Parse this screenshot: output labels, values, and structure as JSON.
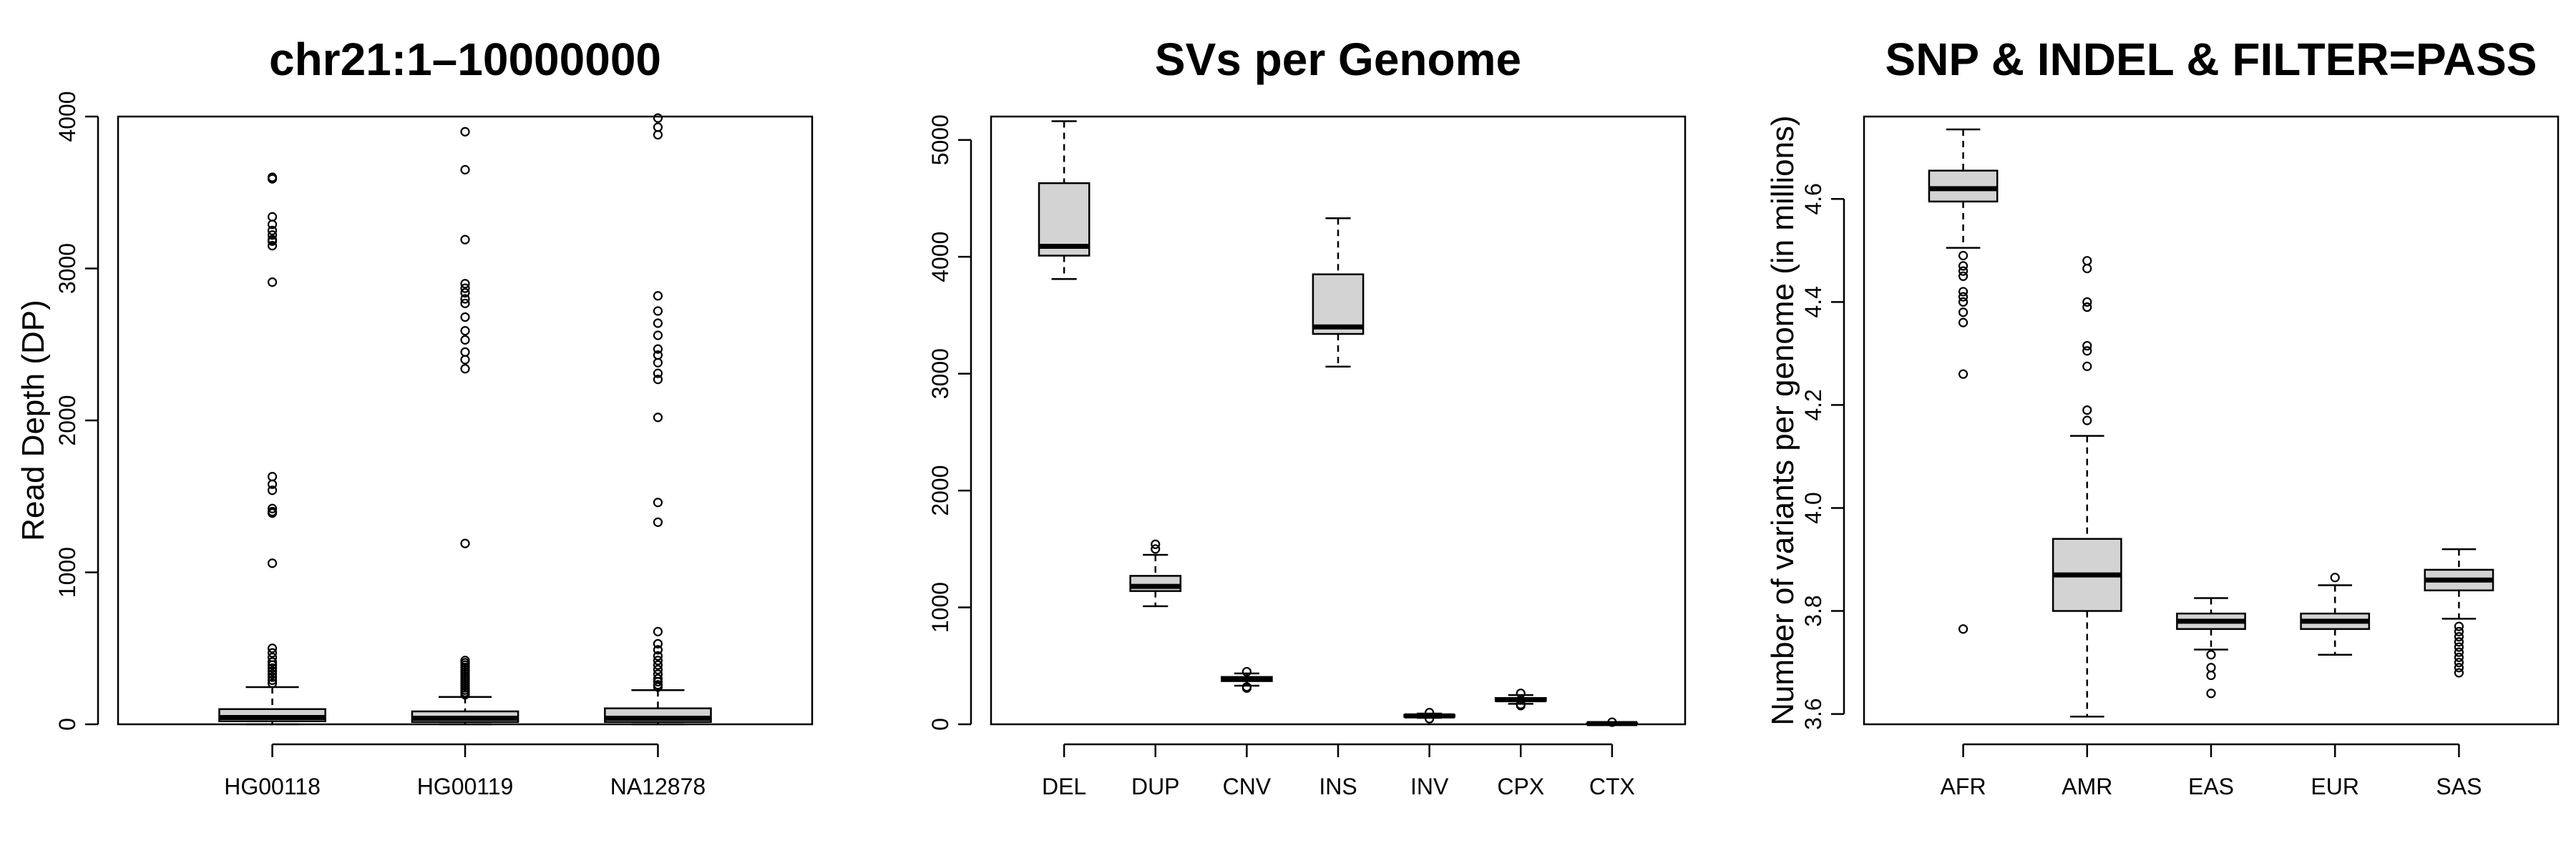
{
  "chart_data": [
    {
      "type": "boxplot",
      "title": "chr21:1–10000000",
      "xlabel": "",
      "ylabel": "Read Depth (DP)",
      "ylim": [
        0,
        4000
      ],
      "yticks": [
        "0",
        "1000",
        "2000",
        "3000",
        "4000"
      ],
      "categories": [
        "HG00118",
        "HG00119",
        "NA12878"
      ],
      "boxes": [
        {
          "lower_whisker": 0,
          "q1": 20,
          "median": 45,
          "q3": 100,
          "upper_whisker": 245,
          "outliers": [
            3600,
            3590,
            3340,
            3290,
            3250,
            3220,
            3190,
            3180,
            3150,
            2910,
            1630,
            1580,
            1540,
            1420,
            1400,
            1390,
            1060,
            500,
            470,
            440,
            410,
            390,
            370,
            350,
            330,
            310,
            290,
            270
          ]
        },
        {
          "lower_whisker": 0,
          "q1": 15,
          "median": 40,
          "q3": 85,
          "upper_whisker": 180,
          "outliers": [
            3900,
            3650,
            3190,
            2900,
            2870,
            2840,
            2800,
            2770,
            2680,
            2590,
            2530,
            2450,
            2400,
            2340,
            1190,
            420,
            405,
            390,
            375,
            360,
            345,
            330,
            315,
            300,
            285,
            270,
            255,
            240,
            225,
            210,
            195
          ]
        },
        {
          "lower_whisker": 0,
          "q1": 15,
          "median": 40,
          "q3": 105,
          "upper_whisker": 225,
          "outliers": [
            3990,
            3930,
            3880,
            2820,
            2720,
            2640,
            2560,
            2470,
            2430,
            2380,
            2310,
            2270,
            2020,
            1460,
            1330,
            610,
            530,
            490,
            450,
            420,
            390,
            360,
            330,
            300,
            280,
            260,
            245
          ]
        }
      ]
    },
    {
      "type": "boxplot",
      "title": "SVs per Genome",
      "xlabel": "",
      "ylabel": "",
      "ylim": [
        0,
        5200
      ],
      "yticks": [
        "0",
        "1000",
        "2000",
        "3000",
        "4000",
        "5000"
      ],
      "categories": [
        "DEL",
        "DUP",
        "CNV",
        "INS",
        "INV",
        "CPX",
        "CTX"
      ],
      "boxes": [
        {
          "lower_whisker": 3810,
          "q1": 4010,
          "median": 4090,
          "q3": 4630,
          "upper_whisker": 5160,
          "outliers": []
        },
        {
          "lower_whisker": 1010,
          "q1": 1140,
          "median": 1180,
          "q3": 1270,
          "upper_whisker": 1450,
          "outliers": [
            1500,
            1540
          ]
        },
        {
          "lower_whisker": 330,
          "q1": 370,
          "median": 385,
          "q3": 405,
          "upper_whisker": 435,
          "outliers": [
            320,
            310,
            450
          ]
        },
        {
          "lower_whisker": 3060,
          "q1": 3340,
          "median": 3400,
          "q3": 3850,
          "upper_whisker": 4330,
          "outliers": []
        },
        {
          "lower_whisker": 55,
          "q1": 65,
          "median": 72,
          "q3": 80,
          "upper_whisker": 92,
          "outliers": [
            100,
            48
          ]
        },
        {
          "lower_whisker": 175,
          "q1": 200,
          "median": 210,
          "q3": 225,
          "upper_whisker": 250,
          "outliers": [
            265,
            170,
            160
          ]
        },
        {
          "lower_whisker": 0,
          "q1": 3,
          "median": 6,
          "q3": 9,
          "upper_whisker": 14,
          "outliers": [
            18
          ]
        }
      ]
    },
    {
      "type": "boxplot",
      "title": "SNP & INDEL & FILTER=PASS",
      "xlabel": "",
      "ylabel": "Number of variants per genome (in millions)",
      "ylim": [
        3.58,
        4.76
      ],
      "yticks": [
        "3.6",
        "3.8",
        "4.0",
        "4.2",
        "4.4",
        "4.6"
      ],
      "categories": [
        "AFR",
        "AMR",
        "EAS",
        "EUR",
        "SAS"
      ],
      "boxes": [
        {
          "lower_whisker": 4.505,
          "q1": 4.595,
          "median": 4.62,
          "q3": 4.655,
          "upper_whisker": 4.735,
          "outliers": [
            4.49,
            4.47,
            4.46,
            4.45,
            4.42,
            4.41,
            4.4,
            4.38,
            4.36,
            4.26,
            3.765
          ]
        },
        {
          "lower_whisker": 3.595,
          "q1": 3.8,
          "median": 3.87,
          "q3": 3.94,
          "upper_whisker": 4.14,
          "outliers": [
            4.48,
            4.465,
            4.4,
            4.39,
            4.315,
            4.305,
            4.275,
            4.19,
            4.17
          ]
        },
        {
          "lower_whisker": 3.725,
          "q1": 3.765,
          "median": 3.78,
          "q3": 3.795,
          "upper_whisker": 3.825,
          "outliers": [
            3.715,
            3.69,
            3.675,
            3.64
          ]
        },
        {
          "lower_whisker": 3.715,
          "q1": 3.765,
          "median": 3.78,
          "q3": 3.795,
          "upper_whisker": 3.85,
          "outliers": [
            3.865
          ]
        },
        {
          "lower_whisker": 3.785,
          "q1": 3.84,
          "median": 3.86,
          "q3": 3.88,
          "upper_whisker": 3.92,
          "outliers": [
            3.77,
            3.76,
            3.75,
            3.74,
            3.73,
            3.72,
            3.71,
            3.7,
            3.69,
            3.68
          ]
        }
      ]
    }
  ]
}
